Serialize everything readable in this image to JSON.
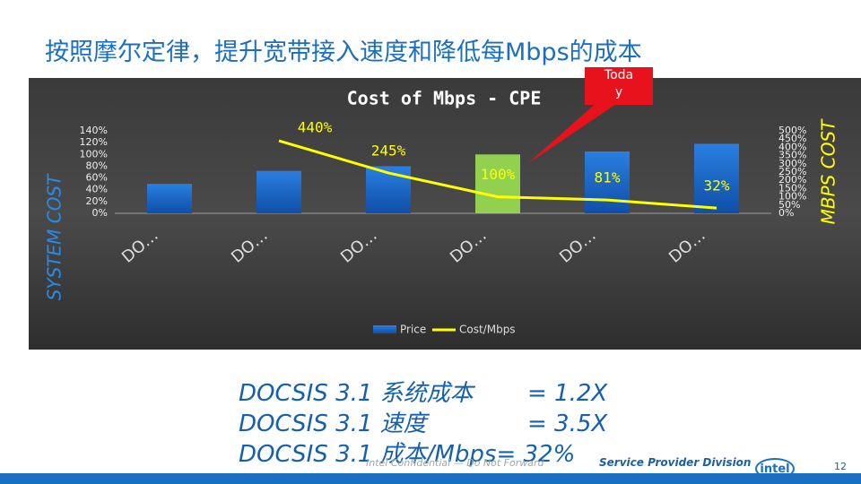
{
  "heading": "按照摩尔定律，提升宽带接入速度和降低每Mbps的成本",
  "summary": [
    [
      "DOCSIS 3.1 系统成本",
      "= 1.2X"
    ],
    [
      "DOCSIS 3.1 速度",
      "= 3.5X"
    ],
    [
      "DOCSIS 3.1 成本/Mbps",
      "= 32%"
    ]
  ],
  "footer": {
    "confidential": "Intel Confidential — Do Not Forward",
    "division": "Service Provider Division",
    "logo": "intel",
    "page": "12"
  },
  "chart_data": {
    "type": "bar+line",
    "title": "Cost of Mbps - CPE",
    "ylabel": "SYSTEM COST",
    "y2label": "MBPS COST",
    "annotation": "Today",
    "categories": [
      "DO…",
      "DO…",
      "DO…",
      "DO…",
      "DO…",
      "DO…"
    ],
    "series": [
      {
        "name": "Price",
        "type": "bar",
        "color": "#1a6fd0",
        "colors": [
          "#1a6fd0",
          "#1a6fd0",
          "#1a6fd0",
          "#92d050",
          "#1a6fd0",
          "#1a6fd0"
        ],
        "values": [
          50,
          72,
          80,
          100,
          105,
          118
        ]
      },
      {
        "name": "Cost/Mbps",
        "type": "line",
        "axis": "y2",
        "color": "#ffff00",
        "values": [
          null,
          440,
          245,
          100,
          81,
          32
        ],
        "value_labels": [
          null,
          "440%",
          "245%",
          "100%",
          "81%",
          "32%"
        ]
      }
    ],
    "ylim": [
      0,
      140
    ],
    "yticks": [
      {
        "value": 0,
        "label": "0%"
      },
      {
        "value": 20,
        "label": "20%"
      },
      {
        "value": 40,
        "label": "40%"
      },
      {
        "value": 60,
        "label": "60%"
      },
      {
        "value": 80,
        "label": "80%"
      },
      {
        "value": 100,
        "label": "100%"
      },
      {
        "value": 120,
        "label": "120%"
      },
      {
        "value": 140,
        "label": "140%"
      }
    ],
    "y2lim": [
      0,
      500
    ],
    "y2ticks": [
      {
        "value": 0,
        "label": "0%"
      },
      {
        "value": 50,
        "label": "50%"
      },
      {
        "value": 100,
        "label": "100%"
      },
      {
        "value": 150,
        "label": "150%"
      },
      {
        "value": 200,
        "label": "200%"
      },
      {
        "value": 250,
        "label": "250%"
      },
      {
        "value": 300,
        "label": "300%"
      },
      {
        "value": 350,
        "label": "350%"
      },
      {
        "value": 400,
        "label": "400%"
      },
      {
        "value": 450,
        "label": "450%"
      },
      {
        "value": 500,
        "label": "500%"
      }
    ],
    "grid": false,
    "legend": "bottom"
  }
}
